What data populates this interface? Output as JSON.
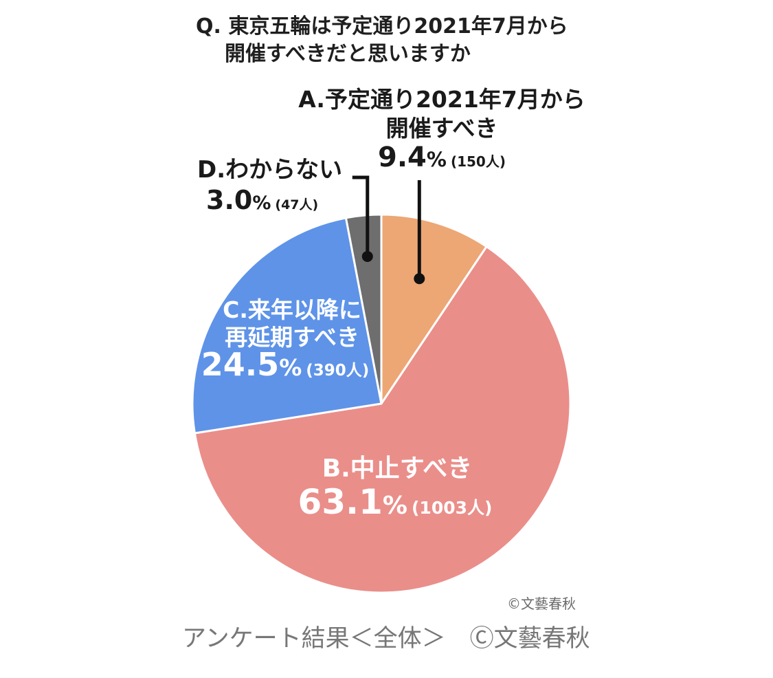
{
  "question": {
    "line1": "Q. 東京五輪は予定通り2021年7月から",
    "line2": "開催すべきだと思いますか"
  },
  "chart_data": {
    "type": "pie",
    "title": "Q. 東京五輪は予定通り2021年7月から開催すべきだと思いますか",
    "start_angle": 0,
    "direction": "clockwise",
    "slices": [
      {
        "id": "A",
        "label_lines": [
          "A.予定通り2021年7月から",
          "開催すべき"
        ],
        "percent_text": "9.4",
        "count_text": "(150人)",
        "value": 9.4,
        "count": 150,
        "color": "#ECA775"
      },
      {
        "id": "B",
        "label_lines": [
          "B.中止すべき"
        ],
        "percent_text": "63.1",
        "count_text": "(1003人)",
        "value": 63.1,
        "count": 1003,
        "color": "#EA8E8A"
      },
      {
        "id": "C",
        "label_lines": [
          "C.来年以降に",
          "再延期すべき"
        ],
        "percent_text": "24.5",
        "count_text": "(390人)",
        "value": 24.5,
        "count": 390,
        "color": "#5E93E8"
      },
      {
        "id": "D",
        "label_lines": [
          "D.わからない"
        ],
        "percent_text": "3.0",
        "count_text": "(47人)",
        "value": 3.0,
        "count": 47,
        "color": "#6E6E6E"
      }
    ],
    "percent_sign": "%"
  },
  "credit": "©文藝春秋",
  "caption": "アンケート結果＜全体＞　Ⓒ文藝春秋"
}
